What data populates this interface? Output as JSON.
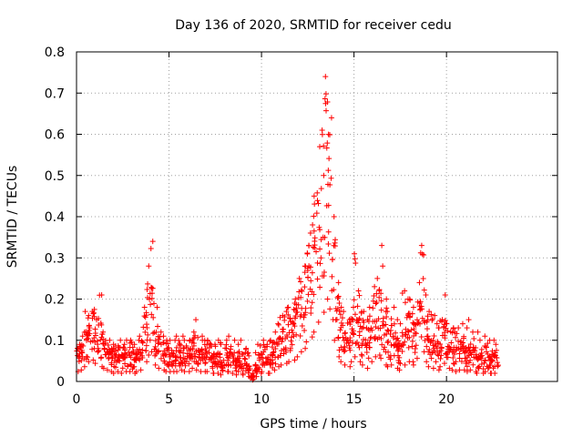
{
  "chart_data": {
    "type": "scatter",
    "title": "Day 136 of 2020, SRMTID for receiver cedu",
    "xlabel": "GPS time / hours",
    "ylabel": "SRMTID / TECUs",
    "xlim": [
      0,
      26
    ],
    "ylim": [
      0,
      0.8
    ],
    "x_ticks": [
      0,
      5,
      10,
      15,
      20
    ],
    "y_ticks": [
      0,
      0.1,
      0.2,
      0.3,
      0.4,
      0.5,
      0.6,
      0.7,
      0.8
    ],
    "grid": true,
    "marker": "+",
    "color": "#ff0000",
    "x_step_hours": 0.2,
    "series": [
      {
        "name": "SRMTID",
        "x_start": 0,
        "values_median": [
          0.06,
          0.07,
          0.09,
          0.12,
          0.13,
          0.11,
          0.09,
          0.08,
          0.07,
          0.06,
          0.05,
          0.06,
          0.05,
          0.06,
          0.06,
          0.05,
          0.06,
          0.07,
          0.12,
          0.16,
          0.18,
          0.1,
          0.08,
          0.07,
          0.06,
          0.06,
          0.06,
          0.06,
          0.07,
          0.06,
          0.06,
          0.08,
          0.07,
          0.06,
          0.06,
          0.06,
          0.05,
          0.05,
          0.05,
          0.04,
          0.06,
          0.06,
          0.05,
          0.04,
          0.05,
          0.04,
          0.03,
          0.01,
          0.03,
          0.05,
          0.06,
          0.05,
          0.05,
          0.07,
          0.09,
          0.1,
          0.11,
          0.12,
          0.13,
          0.15,
          0.18,
          0.2,
          0.24,
          0.27,
          0.3,
          0.36,
          0.42,
          0.5,
          0.44,
          0.25,
          0.15,
          0.12,
          0.1,
          0.09,
          0.12,
          0.15,
          0.12,
          0.1,
          0.08,
          0.12,
          0.15,
          0.16,
          0.14,
          0.1,
          0.09,
          0.1,
          0.08,
          0.07,
          0.1,
          0.12,
          0.12,
          0.1,
          0.14,
          0.18,
          0.12,
          0.09,
          0.08,
          0.07,
          0.09,
          0.11,
          0.08,
          0.07,
          0.06,
          0.07,
          0.07,
          0.06,
          0.07,
          0.06,
          0.05,
          0.05,
          0.06,
          0.05,
          0.05,
          0.05
        ],
        "values_max": [
          0.09,
          0.11,
          0.17,
          0.16,
          0.17,
          0.15,
          0.21,
          0.12,
          0.1,
          0.08,
          0.09,
          0.1,
          0.09,
          0.1,
          0.1,
          0.09,
          0.1,
          0.11,
          0.18,
          0.28,
          0.34,
          0.18,
          0.12,
          0.11,
          0.1,
          0.1,
          0.1,
          0.11,
          0.11,
          0.1,
          0.1,
          0.12,
          0.15,
          0.11,
          0.1,
          0.1,
          0.09,
          0.09,
          0.1,
          0.09,
          0.1,
          0.11,
          0.1,
          0.09,
          0.1,
          0.08,
          0.07,
          0.02,
          0.07,
          0.09,
          0.1,
          0.09,
          0.1,
          0.12,
          0.14,
          0.16,
          0.17,
          0.18,
          0.19,
          0.2,
          0.25,
          0.28,
          0.33,
          0.38,
          0.45,
          0.57,
          0.61,
          0.74,
          0.64,
          0.4,
          0.24,
          0.19,
          0.17,
          0.15,
          0.18,
          0.31,
          0.22,
          0.17,
          0.15,
          0.18,
          0.23,
          0.25,
          0.33,
          0.2,
          0.17,
          0.18,
          0.15,
          0.14,
          0.22,
          0.2,
          0.2,
          0.18,
          0.24,
          0.33,
          0.21,
          0.17,
          0.16,
          0.14,
          0.15,
          0.21,
          0.14,
          0.13,
          0.12,
          0.13,
          0.14,
          0.13,
          0.15,
          0.12,
          0.12,
          0.1,
          0.11,
          0.1,
          0.1,
          0.09
        ]
      }
    ]
  }
}
